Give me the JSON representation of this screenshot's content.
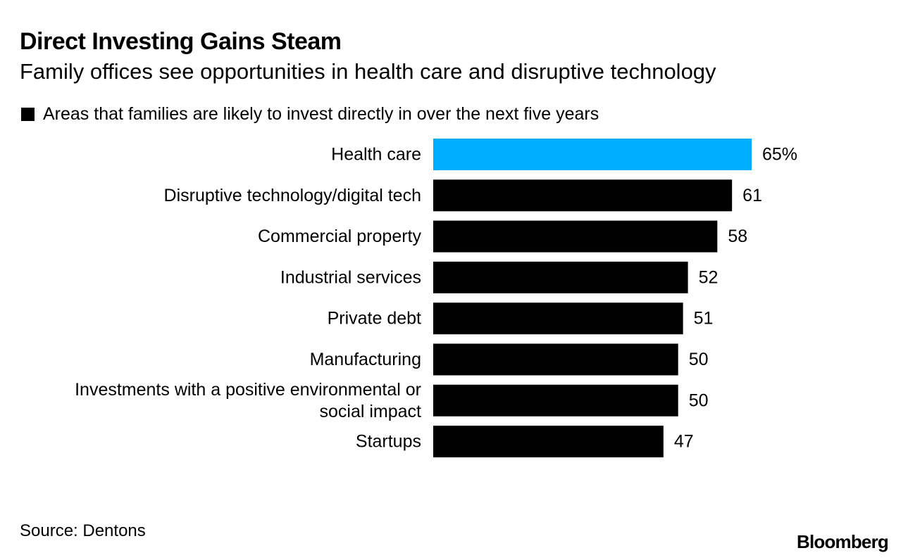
{
  "chart_data": {
    "type": "bar",
    "orientation": "horizontal",
    "title": "Direct Investing Gains Steam",
    "subtitle": "Family offices see opportunities in health care and disruptive technology",
    "legend": {
      "label": "Areas that families are likely to invest directly in over the next five years",
      "color": "#000000",
      "placement": "top-left"
    },
    "categories": [
      [
        "Health care"
      ],
      [
        "Disruptive technology/digital tech"
      ],
      [
        "Commercial property"
      ],
      [
        "Industrial services"
      ],
      [
        "Private debt"
      ],
      [
        "Manufacturing"
      ],
      [
        "Investments with a positive environmental or",
        "social impact"
      ],
      [
        "Startups"
      ]
    ],
    "values": [
      65,
      61,
      58,
      52,
      51,
      50,
      50,
      47
    ],
    "value_labels": [
      "65%",
      "61",
      "58",
      "52",
      "51",
      "50",
      "50",
      "47"
    ],
    "bar_colors": [
      "#00aeff",
      "#000000",
      "#000000",
      "#000000",
      "#000000",
      "#000000",
      "#000000",
      "#000000"
    ],
    "xlim": [
      0,
      65
    ],
    "grid": false,
    "xlabel": "",
    "ylabel": ""
  },
  "footer": {
    "source": "Source: Dentons",
    "brand": "Bloomberg"
  }
}
